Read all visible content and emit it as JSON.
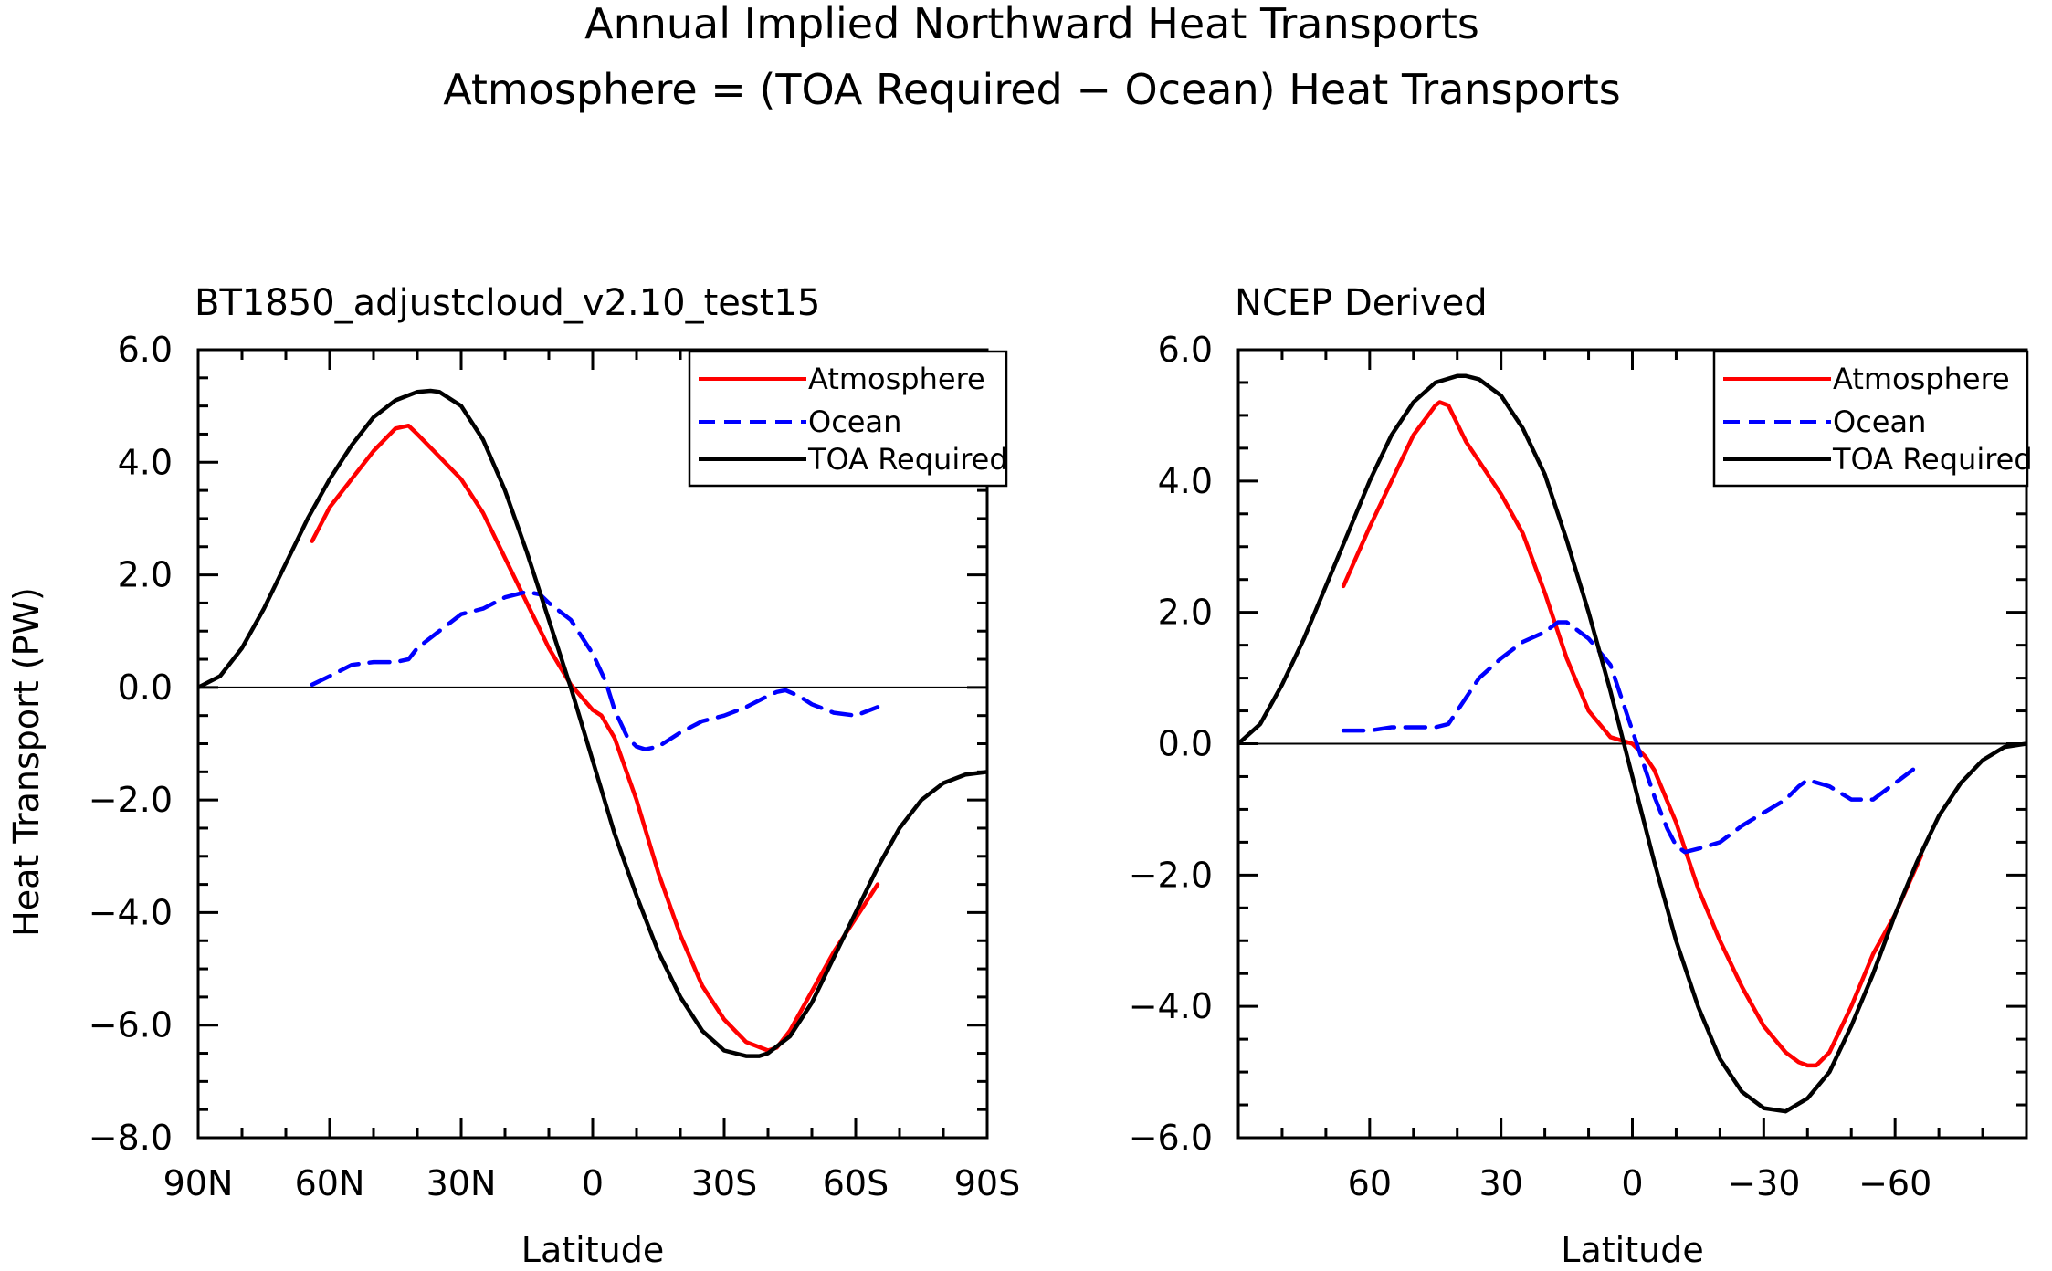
{
  "figure": {
    "title_line1": "Annual Implied Northward Heat Transports",
    "title_line2": "Atmosphere = (TOA Required − Ocean) Heat Transports"
  },
  "chart_data": [
    {
      "type": "line",
      "title": "BT1850_adjustcloud_v2.10_test15",
      "xlabel": "Latitude",
      "ylabel": "Heat Transport (PW)",
      "xlim": [
        90,
        -90
      ],
      "ylim": [
        -8,
        6
      ],
      "xticks": [
        90,
        60,
        30,
        0,
        -30,
        -60,
        -90
      ],
      "xtick_labels": [
        "90N",
        "60N",
        "30N",
        "0",
        "30S",
        "60S",
        "90S"
      ],
      "yticks": [
        6,
        4,
        2,
        0,
        -2,
        -4,
        -6,
        -8
      ],
      "ytick_labels": [
        "6.0",
        "4.0",
        "2.0",
        "0.0",
        "−2.0",
        "−4.0",
        "−6.0",
        "−8.0"
      ],
      "zero_line": true,
      "grid": false,
      "legend_position": "top-right",
      "legend": [
        "Atmosphere",
        "Ocean",
        "TOA Required"
      ],
      "series": [
        {
          "name": "Atmosphere",
          "color": "#ff0000",
          "dash": "solid",
          "x": [
            64,
            60,
            55,
            50,
            45,
            42,
            40,
            35,
            30,
            25,
            20,
            15,
            10,
            5,
            0,
            -2,
            -5,
            -10,
            -15,
            -20,
            -25,
            -30,
            -35,
            -40,
            -42,
            -45,
            -50,
            -55,
            -60,
            -65
          ],
          "y": [
            2.6,
            3.2,
            3.7,
            4.2,
            4.6,
            4.65,
            4.5,
            4.1,
            3.7,
            3.1,
            2.3,
            1.5,
            0.7,
            0.05,
            -0.4,
            -0.5,
            -0.9,
            -2.0,
            -3.3,
            -4.4,
            -5.3,
            -5.9,
            -6.3,
            -6.45,
            -6.4,
            -6.1,
            -5.4,
            -4.7,
            -4.1,
            -3.5
          ]
        },
        {
          "name": "Ocean",
          "color": "#0000ff",
          "dash": "dashed",
          "x": [
            64,
            60,
            55,
            50,
            45,
            42,
            40,
            35,
            30,
            25,
            20,
            15,
            12,
            10,
            5,
            0,
            -3,
            -5,
            -8,
            -10,
            -12,
            -15,
            -20,
            -25,
            -30,
            -35,
            -40,
            -42,
            -44,
            -47,
            -50,
            -55,
            -60,
            -65
          ],
          "y": [
            0.05,
            0.2,
            0.4,
            0.45,
            0.45,
            0.5,
            0.7,
            1.0,
            1.3,
            1.4,
            1.6,
            1.7,
            1.65,
            1.5,
            1.2,
            0.6,
            0.1,
            -0.4,
            -0.9,
            -1.05,
            -1.1,
            -1.05,
            -0.8,
            -0.6,
            -0.5,
            -0.35,
            -0.15,
            -0.08,
            -0.05,
            -0.15,
            -0.3,
            -0.45,
            -0.5,
            -0.35
          ]
        },
        {
          "name": "TOA Required",
          "color": "#000000",
          "dash": "solid",
          "x": [
            90,
            85,
            80,
            75,
            70,
            65,
            60,
            55,
            50,
            45,
            40,
            37,
            35,
            30,
            25,
            20,
            15,
            10,
            5,
            0,
            -5,
            -10,
            -15,
            -20,
            -25,
            -30,
            -35,
            -38,
            -40,
            -45,
            -50,
            -55,
            -60,
            -65,
            -70,
            -75,
            -80,
            -85,
            -90
          ],
          "y": [
            0.0,
            0.2,
            0.7,
            1.4,
            2.2,
            3.0,
            3.7,
            4.3,
            4.8,
            5.1,
            5.25,
            5.27,
            5.25,
            5.0,
            4.4,
            3.5,
            2.4,
            1.2,
            0.0,
            -1.3,
            -2.6,
            -3.7,
            -4.7,
            -5.5,
            -6.1,
            -6.45,
            -6.55,
            -6.55,
            -6.5,
            -6.2,
            -5.6,
            -4.8,
            -4.0,
            -3.2,
            -2.5,
            -2.0,
            -1.7,
            -1.55,
            -1.5
          ]
        }
      ]
    },
    {
      "type": "line",
      "title": "NCEP Derived",
      "xlabel": "Latitude",
      "ylabel": "",
      "xlim": [
        90,
        -90
      ],
      "ylim": [
        -6,
        6
      ],
      "xticks": [
        60,
        30,
        0,
        -30,
        -60
      ],
      "xtick_labels": [
        "60",
        "30",
        "0",
        "−30",
        "−60"
      ],
      "yticks": [
        6,
        4,
        2,
        0,
        -2,
        -4,
        -6
      ],
      "ytick_labels": [
        "6.0",
        "4.0",
        "2.0",
        "0.0",
        "−2.0",
        "−4.0",
        "−6.0"
      ],
      "zero_line": true,
      "grid": false,
      "legend_position": "top-right",
      "legend": [
        "Atmosphere",
        "Ocean",
        "TOA Required"
      ],
      "series": [
        {
          "name": "Atmosphere",
          "color": "#ff0000",
          "dash": "solid",
          "x": [
            66,
            60,
            55,
            50,
            45,
            44,
            42,
            38,
            35,
            30,
            25,
            20,
            15,
            10,
            5,
            0,
            -3,
            -5,
            -10,
            -15,
            -20,
            -25,
            -30,
            -35,
            -38,
            -40,
            -42,
            -45,
            -50,
            -55,
            -60,
            -66
          ],
          "y": [
            2.4,
            3.3,
            4.0,
            4.7,
            5.15,
            5.2,
            5.15,
            4.6,
            4.3,
            3.8,
            3.2,
            2.3,
            1.3,
            0.5,
            0.1,
            0.0,
            -0.2,
            -0.4,
            -1.2,
            -2.2,
            -3.0,
            -3.7,
            -4.3,
            -4.7,
            -4.85,
            -4.9,
            -4.9,
            -4.7,
            -4.0,
            -3.2,
            -2.6,
            -1.7
          ]
        },
        {
          "name": "Ocean",
          "color": "#0000ff",
          "dash": "dashed",
          "x": [
            66,
            60,
            55,
            50,
            45,
            42,
            40,
            35,
            30,
            25,
            20,
            17,
            15,
            10,
            5,
            0,
            -3,
            -5,
            -8,
            -10,
            -12,
            -15,
            -20,
            -25,
            -30,
            -35,
            -38,
            -40,
            -45,
            -50,
            -55,
            -60,
            -66
          ],
          "y": [
            0.2,
            0.2,
            0.25,
            0.25,
            0.25,
            0.3,
            0.5,
            1.0,
            1.3,
            1.55,
            1.7,
            1.85,
            1.85,
            1.6,
            1.2,
            0.2,
            -0.4,
            -0.8,
            -1.3,
            -1.55,
            -1.65,
            -1.6,
            -1.5,
            -1.25,
            -1.05,
            -0.85,
            -0.65,
            -0.55,
            -0.65,
            -0.85,
            -0.85,
            -0.6,
            -0.3
          ]
        },
        {
          "name": "TOA Required",
          "color": "#000000",
          "dash": "solid",
          "x": [
            90,
            85,
            80,
            75,
            70,
            65,
            60,
            55,
            50,
            45,
            40,
            38,
            35,
            30,
            25,
            20,
            15,
            10,
            5,
            0,
            -5,
            -10,
            -15,
            -20,
            -25,
            -30,
            -35,
            -40,
            -45,
            -50,
            -55,
            -60,
            -65,
            -70,
            -75,
            -80,
            -85,
            -90
          ],
          "y": [
            0.0,
            0.3,
            0.9,
            1.6,
            2.4,
            3.2,
            4.0,
            4.7,
            5.2,
            5.5,
            5.6,
            5.6,
            5.55,
            5.3,
            4.8,
            4.1,
            3.1,
            2.0,
            0.8,
            -0.5,
            -1.8,
            -3.0,
            -4.0,
            -4.8,
            -5.3,
            -5.55,
            -5.6,
            -5.4,
            -5.0,
            -4.3,
            -3.5,
            -2.6,
            -1.8,
            -1.1,
            -0.6,
            -0.25,
            -0.05,
            0.0
          ]
        }
      ]
    }
  ]
}
